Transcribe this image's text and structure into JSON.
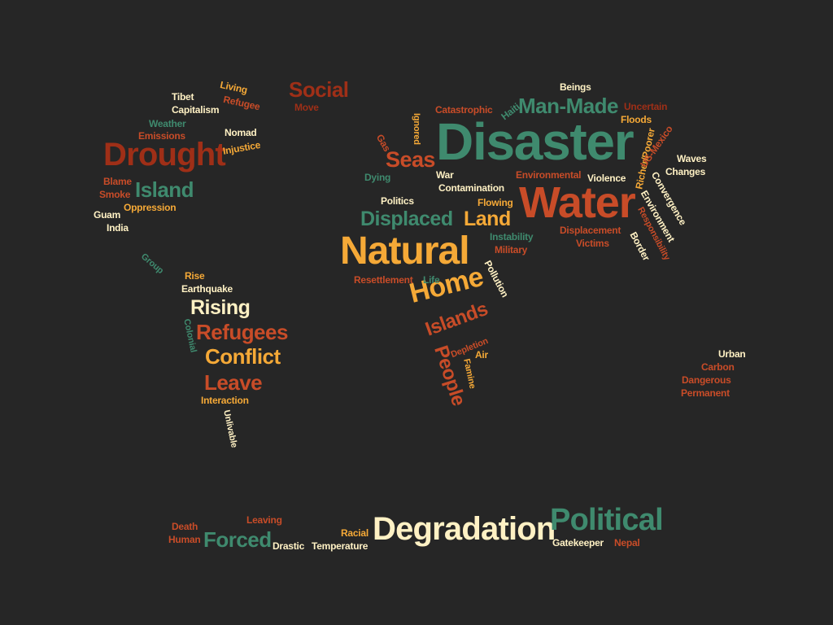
{
  "palette": {
    "cream": "#fff1c4",
    "orange": "#f5a937",
    "green": "#3f8a6e",
    "rust": "#c84c28",
    "darkred": "#9f2f17"
  },
  "words": [
    {
      "text": "Disaster",
      "color": "green"
    },
    {
      "text": "Water",
      "color": "rust"
    },
    {
      "text": "Natural",
      "color": "orange"
    },
    {
      "text": "Drought",
      "color": "darkred"
    },
    {
      "text": "Degradation",
      "color": "cream"
    },
    {
      "text": "Political",
      "color": "green"
    },
    {
      "text": "Home",
      "color": "orange"
    },
    {
      "text": "Man-Made",
      "color": "green"
    },
    {
      "text": "Social",
      "color": "darkred"
    },
    {
      "text": "Island",
      "color": "green"
    },
    {
      "text": "Displaced",
      "color": "green"
    },
    {
      "text": "Land",
      "color": "orange"
    },
    {
      "text": "Seas",
      "color": "rust"
    },
    {
      "text": "Refugees",
      "color": "rust"
    },
    {
      "text": "Rising",
      "color": "cream"
    },
    {
      "text": "Conflict",
      "color": "orange"
    },
    {
      "text": "Leave",
      "color": "rust"
    },
    {
      "text": "Forced",
      "color": "green"
    },
    {
      "text": "Islands",
      "color": "rust"
    },
    {
      "text": "People",
      "color": "rust"
    },
    {
      "text": "Living",
      "color": "orange"
    },
    {
      "text": "Refugee",
      "color": "rust"
    },
    {
      "text": "Tibet",
      "color": "cream"
    },
    {
      "text": "Capitalism",
      "color": "cream"
    },
    {
      "text": "Weather",
      "color": "green"
    },
    {
      "text": "Emissions",
      "color": "rust"
    },
    {
      "text": "Nomad",
      "color": "cream"
    },
    {
      "text": "Injustice",
      "color": "orange"
    },
    {
      "text": "Move",
      "color": "darkred"
    },
    {
      "text": "Blame",
      "color": "rust"
    },
    {
      "text": "Smoke",
      "color": "rust"
    },
    {
      "text": "Guam",
      "color": "cream"
    },
    {
      "text": "Oppression",
      "color": "orange"
    },
    {
      "text": "India",
      "color": "cream"
    },
    {
      "text": "Group",
      "color": "green"
    },
    {
      "text": "Rise",
      "color": "orange"
    },
    {
      "text": "Earthquake",
      "color": "cream"
    },
    {
      "text": "Colonial",
      "color": "green"
    },
    {
      "text": "Interaction",
      "color": "orange"
    },
    {
      "text": "Unlivable",
      "color": "cream"
    },
    {
      "text": "Gas",
      "color": "rust"
    },
    {
      "text": "Ignored",
      "color": "orange"
    },
    {
      "text": "Catastrophic",
      "color": "rust"
    },
    {
      "text": "Haiti",
      "color": "green"
    },
    {
      "text": "Beings",
      "color": "cream"
    },
    {
      "text": "Uncertain",
      "color": "darkred"
    },
    {
      "text": "Floods",
      "color": "orange"
    },
    {
      "text": "Dying",
      "color": "green"
    },
    {
      "text": "War",
      "color": "cream"
    },
    {
      "text": "Contamination",
      "color": "cream"
    },
    {
      "text": "Politics",
      "color": "cream"
    },
    {
      "text": "Flowing",
      "color": "orange"
    },
    {
      "text": "Environmental",
      "color": "rust"
    },
    {
      "text": "Violence",
      "color": "cream"
    },
    {
      "text": "Richer/Poorer",
      "color": "orange"
    },
    {
      "text": "US-Mexico",
      "color": "rust"
    },
    {
      "text": "Waves",
      "color": "cream"
    },
    {
      "text": "Changes",
      "color": "cream"
    },
    {
      "text": "Convergence",
      "color": "cream"
    },
    {
      "text": "Environment",
      "color": "cream"
    },
    {
      "text": "Instability",
      "color": "green"
    },
    {
      "text": "Military",
      "color": "rust"
    },
    {
      "text": "Displacement",
      "color": "rust"
    },
    {
      "text": "Victims",
      "color": "rust"
    },
    {
      "text": "Border",
      "color": "cream"
    },
    {
      "text": "Responsibility",
      "color": "rust"
    },
    {
      "text": "Resettlement",
      "color": "rust"
    },
    {
      "text": "Life",
      "color": "green"
    },
    {
      "text": "Pollution",
      "color": "cream"
    },
    {
      "text": "Depletion",
      "color": "rust"
    },
    {
      "text": "Air",
      "color": "orange"
    },
    {
      "text": "Famine",
      "color": "orange"
    },
    {
      "text": "Urban",
      "color": "cream"
    },
    {
      "text": "Carbon",
      "color": "rust"
    },
    {
      "text": "Dangerous",
      "color": "rust"
    },
    {
      "text": "Permanent",
      "color": "rust"
    },
    {
      "text": "Death",
      "color": "rust"
    },
    {
      "text": "Human",
      "color": "rust"
    },
    {
      "text": "Leaving",
      "color": "rust"
    },
    {
      "text": "Drastic",
      "color": "cream"
    },
    {
      "text": "Temperature",
      "color": "cream"
    },
    {
      "text": "Racial",
      "color": "orange"
    },
    {
      "text": "Gatekeeper",
      "color": "cream"
    },
    {
      "text": "Nepal",
      "color": "rust"
    }
  ]
}
